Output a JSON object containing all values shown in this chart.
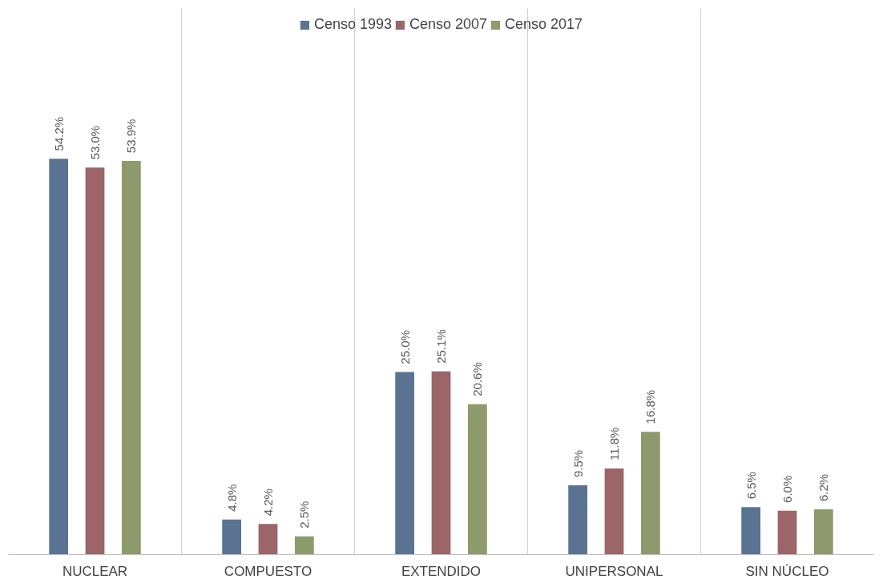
{
  "chart_data": {
    "type": "bar",
    "categories": [
      "NUCLEAR",
      "COMPUESTO",
      "EXTENDIDO",
      "UNIPERSONAL",
      "SIN NÚCLEO"
    ],
    "series": [
      {
        "name": "Censo 1993",
        "color": "#5b7393",
        "values": [
          54.2,
          4.8,
          25.0,
          9.5,
          6.5
        ],
        "value_labels": [
          "54.2%",
          "4.8%",
          "25.0%",
          "9.5%",
          "6.5%"
        ]
      },
      {
        "name": "Censo 2007",
        "color": "#9c6567",
        "values": [
          53.0,
          4.2,
          25.1,
          11.8,
          6.0
        ],
        "value_labels": [
          "53.0%",
          "4.2%",
          "25.1%",
          "11.8%",
          "6.0%"
        ]
      },
      {
        "name": "Censo 2017",
        "color": "#8d9a6c",
        "values": [
          53.9,
          2.5,
          20.6,
          16.8,
          6.2
        ],
        "value_labels": [
          "53.9%",
          "2.5%",
          "20.6%",
          "16.8%",
          "6.2%"
        ]
      }
    ],
    "grid": "x",
    "legend": "top"
  }
}
